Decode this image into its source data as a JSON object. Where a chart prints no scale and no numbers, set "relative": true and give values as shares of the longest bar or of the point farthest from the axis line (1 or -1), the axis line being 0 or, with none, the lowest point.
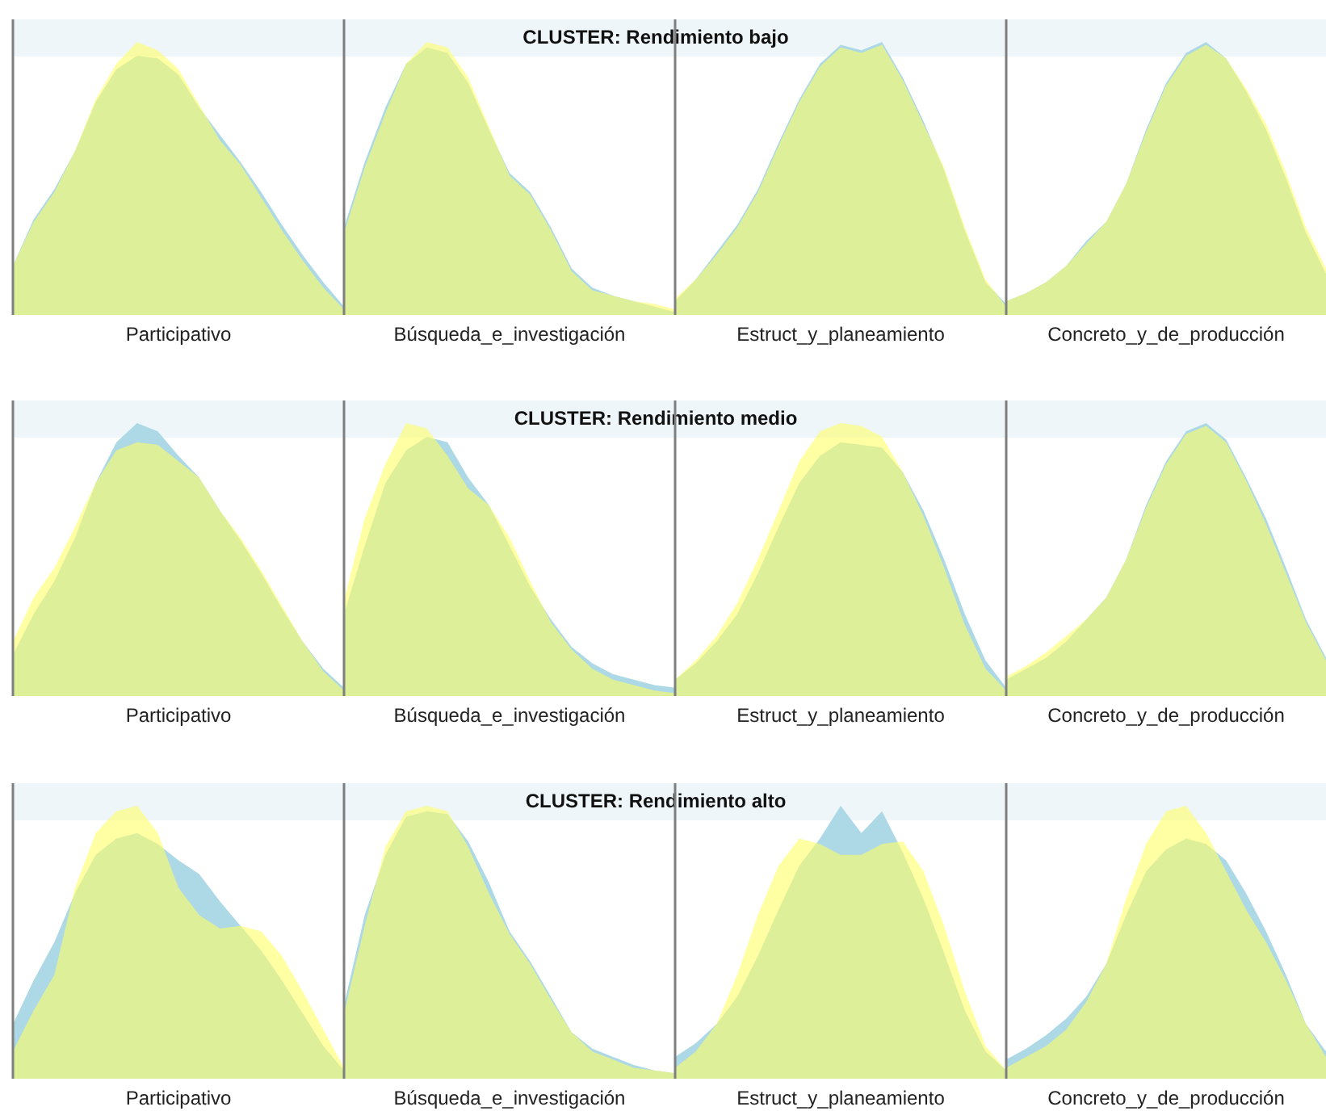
{
  "chart_data": [
    {
      "type": "area",
      "relative": true,
      "xlabel": "Participativo",
      "categories": [
        null,
        null,
        null,
        null,
        null,
        null,
        null,
        null,
        null,
        null,
        null,
        null,
        null,
        null,
        null,
        null,
        null
      ],
      "series": [
        {
          "color": "#add8e6",
          "values": [
            0.18,
            0.35,
            0.46,
            0.6,
            0.78,
            0.9,
            0.95,
            0.94,
            0.88,
            0.76,
            0.66,
            0.56,
            0.45,
            0.33,
            0.22,
            0.12,
            0.03
          ]
        },
        {
          "color": "#ffff66",
          "values": [
            0.18,
            0.34,
            0.45,
            0.6,
            0.79,
            0.92,
            1.0,
            0.97,
            0.9,
            0.77,
            0.64,
            0.55,
            0.43,
            0.31,
            0.2,
            0.1,
            0.02
          ]
        }
      ]
    },
    {
      "type": "area",
      "relative": true,
      "title": "CLUSTER: Rendimiento bajo",
      "xlabel": "Búsqueda_e_investigación",
      "categories": [
        null,
        null,
        null,
        null,
        null,
        null,
        null,
        null,
        null,
        null,
        null,
        null,
        null,
        null,
        null,
        null,
        null
      ],
      "series": [
        {
          "color": "#add8e6",
          "values": [
            0.32,
            0.56,
            0.76,
            0.92,
            0.98,
            0.96,
            0.85,
            0.68,
            0.52,
            0.45,
            0.32,
            0.17,
            0.1,
            0.07,
            0.05,
            0.03,
            0.01
          ]
        },
        {
          "color": "#ffff66",
          "values": [
            0.3,
            0.54,
            0.74,
            0.92,
            1.0,
            0.98,
            0.87,
            0.69,
            0.51,
            0.44,
            0.31,
            0.16,
            0.09,
            0.07,
            0.05,
            0.04,
            0.02
          ]
        }
      ]
    },
    {
      "type": "area",
      "relative": true,
      "xlabel": "Estruct_y_planeamiento",
      "categories": [
        null,
        null,
        null,
        null,
        null,
        null,
        null,
        null,
        null,
        null,
        null,
        null,
        null,
        null,
        null,
        null,
        null
      ],
      "series": [
        {
          "color": "#add8e6",
          "values": [
            0.05,
            0.13,
            0.23,
            0.33,
            0.46,
            0.63,
            0.79,
            0.92,
            0.99,
            0.97,
            1.0,
            0.87,
            0.71,
            0.53,
            0.31,
            0.12,
            0.04
          ]
        },
        {
          "color": "#ffff66",
          "values": [
            0.06,
            0.13,
            0.22,
            0.32,
            0.45,
            0.62,
            0.78,
            0.91,
            0.98,
            0.96,
            0.99,
            0.86,
            0.7,
            0.54,
            0.32,
            0.13,
            0.03
          ]
        }
      ]
    },
    {
      "type": "area",
      "relative": true,
      "xlabel": "Concreto_y_de_producción",
      "categories": [
        null,
        null,
        null,
        null,
        null,
        null,
        null,
        null,
        null,
        null,
        null,
        null,
        null,
        null,
        null,
        null,
        null
      ],
      "series": [
        {
          "color": "#add8e6",
          "values": [
            0.05,
            0.08,
            0.12,
            0.18,
            0.27,
            0.34,
            0.48,
            0.68,
            0.85,
            0.96,
            1.0,
            0.94,
            0.82,
            0.68,
            0.5,
            0.3,
            0.15
          ]
        },
        {
          "color": "#ffff66",
          "values": [
            0.05,
            0.08,
            0.12,
            0.18,
            0.26,
            0.34,
            0.48,
            0.67,
            0.84,
            0.95,
            0.99,
            0.94,
            0.83,
            0.7,
            0.52,
            0.32,
            0.17
          ]
        }
      ]
    },
    {
      "type": "area",
      "relative": true,
      "xlabel": "Participativo",
      "categories": [
        null,
        null,
        null,
        null,
        null,
        null,
        null,
        null,
        null,
        null,
        null,
        null,
        null,
        null,
        null,
        null,
        null
      ],
      "series": [
        {
          "color": "#add8e6",
          "values": [
            0.15,
            0.3,
            0.42,
            0.58,
            0.78,
            0.93,
            1.0,
            0.97,
            0.88,
            0.8,
            0.68,
            0.57,
            0.45,
            0.32,
            0.2,
            0.1,
            0.03
          ]
        },
        {
          "color": "#ffff66",
          "values": [
            0.2,
            0.36,
            0.47,
            0.62,
            0.78,
            0.9,
            0.93,
            0.92,
            0.86,
            0.8,
            0.68,
            0.58,
            0.46,
            0.33,
            0.2,
            0.09,
            0.02
          ]
        }
      ]
    },
    {
      "type": "area",
      "relative": true,
      "title": "CLUSTER: Rendimiento medio",
      "xlabel": "Búsqueda_e_investigación",
      "categories": [
        null,
        null,
        null,
        null,
        null,
        null,
        null,
        null,
        null,
        null,
        null,
        null,
        null,
        null,
        null,
        null,
        null
      ],
      "series": [
        {
          "color": "#add8e6",
          "values": [
            0.3,
            0.55,
            0.78,
            0.9,
            0.95,
            0.93,
            0.8,
            0.7,
            0.55,
            0.4,
            0.28,
            0.18,
            0.12,
            0.08,
            0.06,
            0.04,
            0.03
          ]
        },
        {
          "color": "#ffff66",
          "values": [
            0.35,
            0.65,
            0.85,
            1.0,
            0.98,
            0.88,
            0.76,
            0.7,
            0.58,
            0.42,
            0.27,
            0.17,
            0.1,
            0.06,
            0.04,
            0.02,
            0.01
          ]
        }
      ]
    },
    {
      "type": "area",
      "relative": true,
      "xlabel": "Estruct_y_planeamiento",
      "categories": [
        null,
        null,
        null,
        null,
        null,
        null,
        null,
        null,
        null,
        null,
        null,
        null,
        null,
        null,
        null,
        null,
        null
      ],
      "series": [
        {
          "color": "#add8e6",
          "values": [
            0.06,
            0.12,
            0.2,
            0.3,
            0.45,
            0.62,
            0.78,
            0.88,
            0.93,
            0.92,
            0.91,
            0.82,
            0.68,
            0.5,
            0.3,
            0.13,
            0.03
          ]
        },
        {
          "color": "#ffff66",
          "values": [
            0.06,
            0.13,
            0.22,
            0.34,
            0.5,
            0.68,
            0.86,
            0.97,
            1.0,
            0.99,
            0.95,
            0.82,
            0.66,
            0.47,
            0.26,
            0.1,
            0.02
          ]
        }
      ]
    },
    {
      "type": "area",
      "relative": true,
      "xlabel": "Concreto_y_de_producción",
      "categories": [
        null,
        null,
        null,
        null,
        null,
        null,
        null,
        null,
        null,
        null,
        null,
        null,
        null,
        null,
        null,
        null,
        null
      ],
      "series": [
        {
          "color": "#add8e6",
          "values": [
            0.06,
            0.1,
            0.14,
            0.2,
            0.28,
            0.36,
            0.5,
            0.7,
            0.86,
            0.97,
            1.0,
            0.94,
            0.8,
            0.65,
            0.47,
            0.28,
            0.14
          ]
        },
        {
          "color": "#ffff66",
          "values": [
            0.07,
            0.11,
            0.16,
            0.22,
            0.28,
            0.36,
            0.5,
            0.69,
            0.85,
            0.96,
            0.99,
            0.93,
            0.79,
            0.63,
            0.45,
            0.27,
            0.13
          ]
        }
      ]
    },
    {
      "type": "area",
      "relative": true,
      "xlabel": "Participativo",
      "categories": [
        null,
        null,
        null,
        null,
        null,
        null,
        null,
        null,
        null,
        null,
        null,
        null,
        null,
        null,
        null,
        null,
        null
      ],
      "series": [
        {
          "color": "#add8e6",
          "values": [
            0.2,
            0.36,
            0.5,
            0.68,
            0.82,
            0.88,
            0.9,
            0.86,
            0.8,
            0.75,
            0.65,
            0.56,
            0.47,
            0.36,
            0.24,
            0.12,
            0.03
          ]
        },
        {
          "color": "#ffff66",
          "values": [
            0.1,
            0.25,
            0.38,
            0.7,
            0.9,
            0.98,
            1.0,
            0.9,
            0.7,
            0.6,
            0.55,
            0.56,
            0.54,
            0.45,
            0.32,
            0.18,
            0.04
          ]
        }
      ]
    },
    {
      "type": "area",
      "relative": true,
      "title": "CLUSTER: Rendimiento alto",
      "xlabel": "Búsqueda_e_investigación",
      "categories": [
        null,
        null,
        null,
        null,
        null,
        null,
        null,
        null,
        null,
        null,
        null,
        null,
        null,
        null,
        null,
        null,
        null
      ],
      "series": [
        {
          "color": "#add8e6",
          "values": [
            0.27,
            0.6,
            0.82,
            0.96,
            0.98,
            0.97,
            0.87,
            0.72,
            0.54,
            0.43,
            0.3,
            0.17,
            0.11,
            0.08,
            0.05,
            0.03,
            0.02
          ]
        },
        {
          "color": "#ffff66",
          "values": [
            0.24,
            0.56,
            0.85,
            0.98,
            1.0,
            0.98,
            0.85,
            0.68,
            0.53,
            0.42,
            0.29,
            0.17,
            0.1,
            0.07,
            0.04,
            0.03,
            0.02
          ]
        }
      ]
    },
    {
      "type": "area",
      "relative": true,
      "xlabel": "Estruct_y_planeamiento",
      "categories": [
        null,
        null,
        null,
        null,
        null,
        null,
        null,
        null,
        null,
        null,
        null,
        null,
        null,
        null,
        null,
        null,
        null
      ],
      "series": [
        {
          "color": "#add8e6",
          "values": [
            0.08,
            0.13,
            0.2,
            0.3,
            0.45,
            0.62,
            0.78,
            0.88,
            1.0,
            0.9,
            0.98,
            0.83,
            0.66,
            0.46,
            0.25,
            0.1,
            0.03
          ]
        },
        {
          "color": "#ffff66",
          "values": [
            0.04,
            0.1,
            0.2,
            0.38,
            0.6,
            0.78,
            0.88,
            0.86,
            0.82,
            0.82,
            0.86,
            0.87,
            0.76,
            0.56,
            0.32,
            0.12,
            0.03
          ]
        }
      ]
    },
    {
      "type": "area",
      "relative": true,
      "xlabel": "Concreto_y_de_producción",
      "categories": [
        null,
        null,
        null,
        null,
        null,
        null,
        null,
        null,
        null,
        null,
        null,
        null,
        null,
        null,
        null,
        null,
        null
      ],
      "series": [
        {
          "color": "#add8e6",
          "values": [
            0.07,
            0.11,
            0.16,
            0.22,
            0.3,
            0.42,
            0.6,
            0.76,
            0.84,
            0.88,
            0.86,
            0.8,
            0.68,
            0.54,
            0.38,
            0.2,
            0.1
          ]
        },
        {
          "color": "#ffff66",
          "values": [
            0.04,
            0.08,
            0.12,
            0.18,
            0.28,
            0.42,
            0.66,
            0.86,
            0.98,
            1.0,
            0.9,
            0.76,
            0.62,
            0.5,
            0.36,
            0.2,
            0.08
          ]
        }
      ]
    }
  ]
}
